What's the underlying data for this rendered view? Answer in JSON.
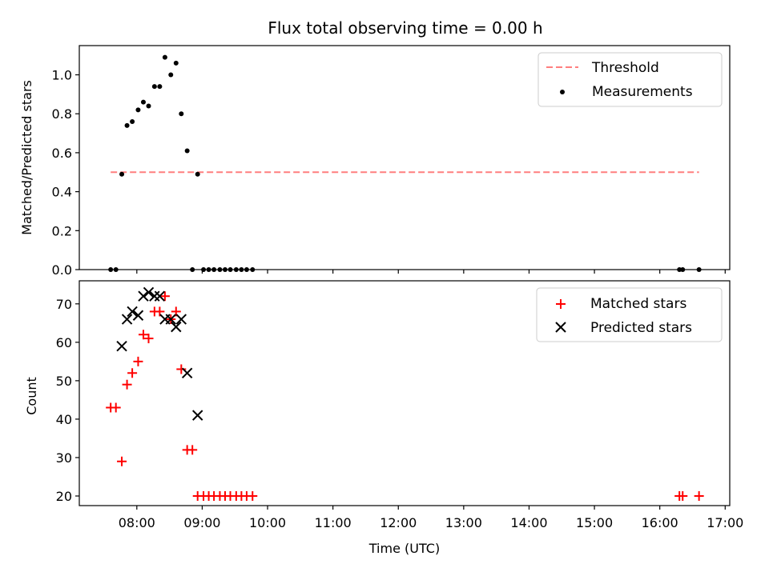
{
  "figure": {
    "title": "Flux total observing time = 0.00 h",
    "xlabel": "Time (UTC)"
  },
  "colors": {
    "threshold": "#ff7f7f",
    "measurements": "#000000",
    "matched": "#ff0000",
    "predicted": "#000000"
  },
  "chart_data": [
    {
      "type": "scatter",
      "panel": "top",
      "title": "Flux total observing time = 0.00 h",
      "ylabel": "Matched/Predicted stars",
      "xlabel": "",
      "x_unit": "hours UTC",
      "xlim": [
        7.12,
        17.07
      ],
      "ylim": [
        0.0,
        1.15
      ],
      "yticks": [
        0.0,
        0.2,
        0.4,
        0.6,
        0.8,
        1.0
      ],
      "ytick_labels": [
        "0.0",
        "0.2",
        "0.4",
        "0.6",
        "0.8",
        "1.0"
      ],
      "xticks": [
        8,
        9,
        10,
        11,
        12,
        13,
        14,
        15,
        16,
        17
      ],
      "grid": false,
      "legend": "top-right",
      "series": [
        {
          "name": "Threshold",
          "style": "dashed-line",
          "x": [
            7.6,
            16.6
          ],
          "y": [
            0.5,
            0.5
          ]
        },
        {
          "name": "Measurements",
          "style": "dot",
          "x": [
            7.6,
            7.68,
            7.77,
            7.85,
            7.93,
            8.02,
            8.1,
            8.18,
            8.27,
            8.35,
            8.43,
            8.52,
            8.6,
            8.68,
            8.77,
            8.85,
            8.93,
            9.02,
            9.1,
            9.18,
            9.27,
            9.35,
            9.43,
            9.52,
            9.6,
            9.68,
            9.77,
            16.3,
            16.35,
            16.6
          ],
          "y": [
            0.0,
            0.0,
            0.49,
            0.74,
            0.76,
            0.82,
            0.86,
            0.84,
            0.94,
            0.94,
            1.09,
            1.0,
            1.06,
            0.8,
            0.61,
            0.0,
            0.49,
            0.0,
            0.0,
            0.0,
            0.0,
            0.0,
            0.0,
            0.0,
            0.0,
            0.0,
            0.0,
            0.0,
            0.0,
            0.0
          ]
        }
      ]
    },
    {
      "type": "scatter",
      "panel": "bottom",
      "title": "",
      "ylabel": "Count",
      "xlabel": "Time (UTC)",
      "x_unit": "hours UTC",
      "xlim": [
        7.12,
        17.07
      ],
      "ylim": [
        17.5,
        76.0
      ],
      "yticks": [
        20,
        30,
        40,
        50,
        60,
        70
      ],
      "ytick_labels": [
        "20",
        "30",
        "40",
        "50",
        "60",
        "70"
      ],
      "xticks": [
        8,
        9,
        10,
        11,
        12,
        13,
        14,
        15,
        16,
        17
      ],
      "xtick_labels": [
        "08:00",
        "09:00",
        "10:00",
        "11:00",
        "12:00",
        "13:00",
        "14:00",
        "15:00",
        "16:00",
        "17:00"
      ],
      "grid": false,
      "legend": "top-right",
      "series": [
        {
          "name": "Matched stars",
          "style": "plus",
          "x": [
            7.6,
            7.68,
            7.77,
            7.85,
            7.93,
            8.02,
            8.1,
            8.18,
            8.27,
            8.35,
            8.43,
            8.52,
            8.6,
            8.68,
            8.77,
            8.85,
            8.93,
            9.02,
            9.1,
            9.18,
            9.27,
            9.35,
            9.43,
            9.52,
            9.6,
            9.68,
            9.77,
            16.3,
            16.35,
            16.6
          ],
          "y": [
            43,
            43,
            29,
            49,
            52,
            55,
            62,
            61,
            68,
            68,
            72,
            66,
            68,
            53,
            32,
            32,
            20,
            20,
            20,
            20,
            20,
            20,
            20,
            20,
            20,
            20,
            20,
            20,
            20,
            20
          ]
        },
        {
          "name": "Predicted stars",
          "style": "x",
          "x": [
            7.77,
            7.85,
            7.93,
            8.02,
            8.1,
            8.18,
            8.27,
            8.35,
            8.43,
            8.52,
            8.6,
            8.68,
            8.77,
            8.93
          ],
          "y": [
            59,
            66,
            68,
            67,
            72,
            73,
            72,
            72,
            66,
            66,
            64,
            66,
            52,
            41
          ]
        }
      ]
    }
  ]
}
